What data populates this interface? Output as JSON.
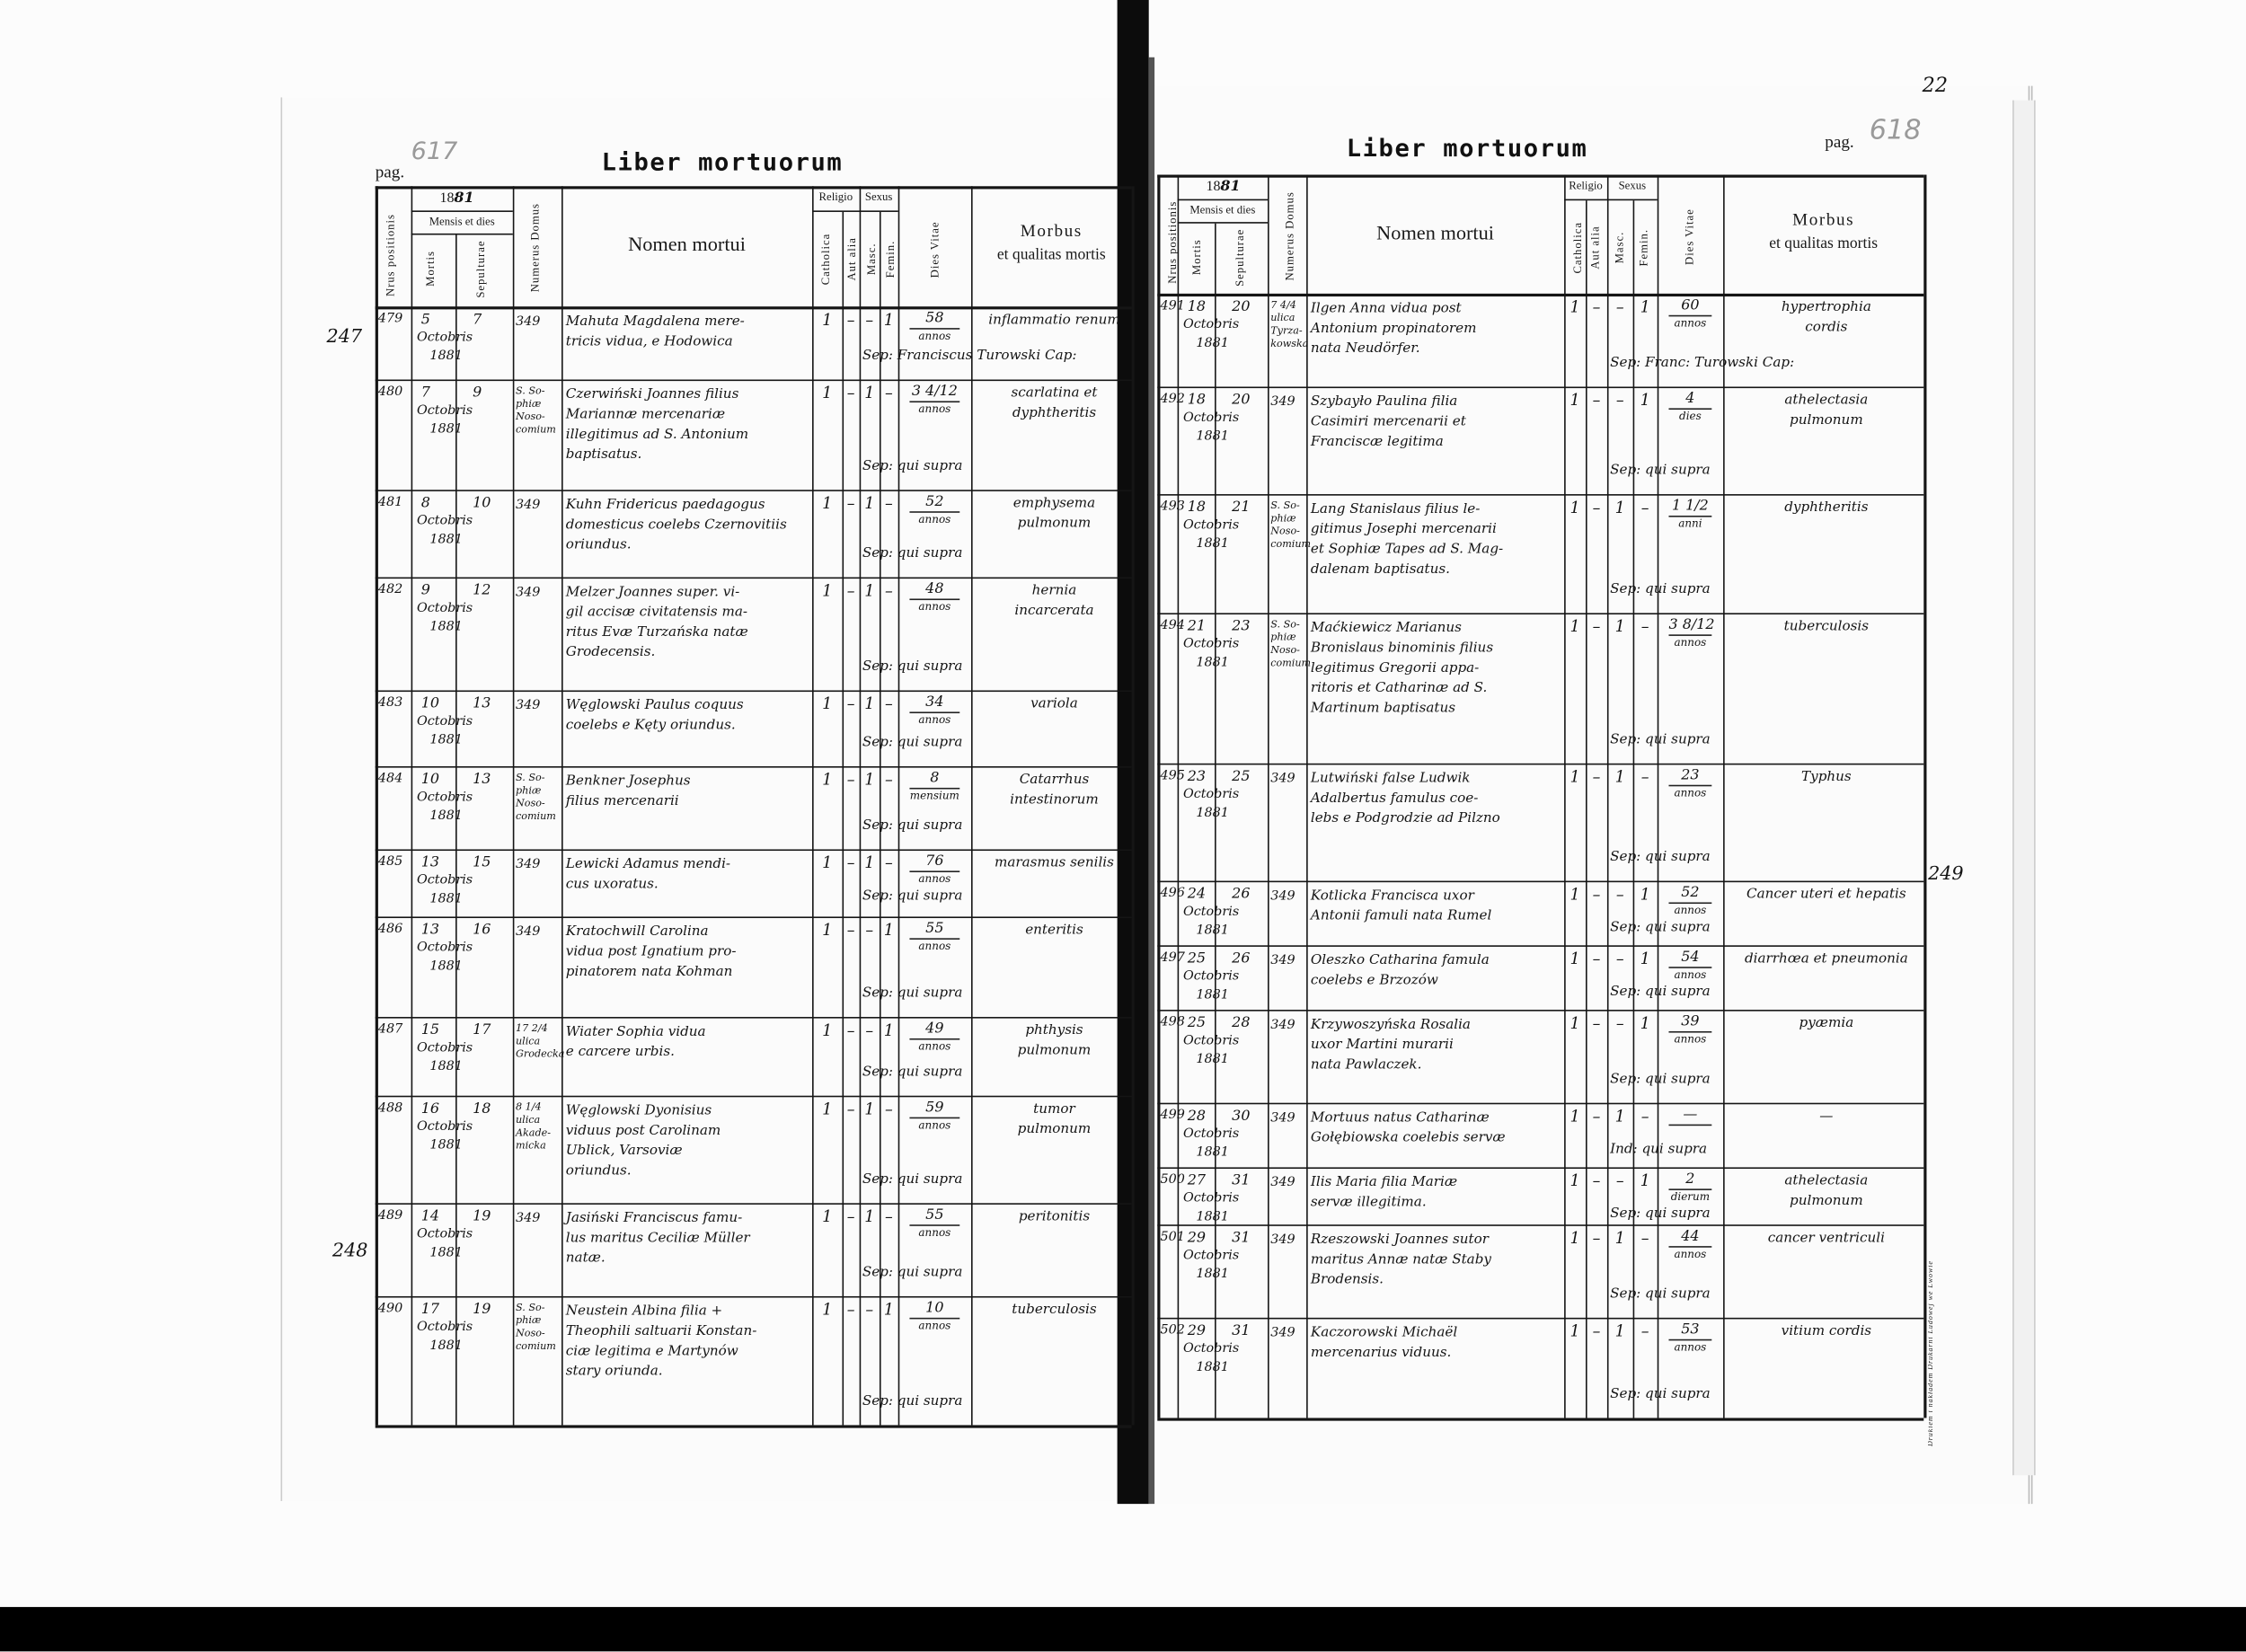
{
  "document": {
    "title": "Liber mortuorum",
    "colors": {
      "paper": "#fbfbfb",
      "ink": "#141414",
      "pencil": "#9a9a9a",
      "background_band": "#000000"
    },
    "printer_imprint": "Drukiem i nakładem Drukarni Ludowej we Lwowie",
    "corner_note": "22"
  },
  "header": {
    "nrus": "Nrus positionis",
    "year_printed": "18",
    "year_hand": "81",
    "mensis": "Mensis et dies",
    "mortis": "Mortis",
    "sepulturae": "Sepulturae",
    "numerus_domus": "Numerus Domus",
    "nomen": "Nomen mortui",
    "religio": "Religio",
    "catholica": "Catholica",
    "aut_alia": "Aut alia",
    "sexus": "Sexus",
    "masc": "Masc.",
    "femin": "Femin.",
    "dies_vitae": "Dies Vitae",
    "morbus": "Morbus",
    "qualitas": "et qualitas mortis"
  },
  "pages": [
    {
      "pag_label": "pag.",
      "pag_number": "617",
      "margin_notes": [
        "247",
        "248"
      ],
      "rows": [
        {
          "nr": "479",
          "mortis": "5",
          "sepulturae": "7",
          "month": "Octobris",
          "year": "1881",
          "domus": [
            "349"
          ],
          "name": [
            "Mahuta Magdalena mere-",
            "tricis vidua, e Hodowica"
          ],
          "catholica": "1",
          "aut_alia": "–",
          "masc": "–",
          "femin": "1",
          "dies": "58",
          "unit": "annos",
          "sepultor": "Sep: Franciscus Turowski Cap:",
          "morbus": [
            "inflammatio renum"
          ]
        },
        {
          "nr": "480",
          "mortis": "7",
          "sepulturae": "9",
          "month": "Octobris",
          "year": "1881",
          "domus": [
            "S. So-",
            "phiæ",
            "Noso-",
            "comium"
          ],
          "name": [
            "Czerwiński Joannes filius",
            "Mariannæ mercenariæ",
            "illegitimus ad S. Antonium",
            "baptisatus."
          ],
          "catholica": "1",
          "aut_alia": "–",
          "masc": "1",
          "femin": "–",
          "dies": "3 4/12",
          "unit": "annos",
          "sepultor": "Sep: qui supra",
          "morbus": [
            "scarlatina et",
            "dyphtheritis"
          ]
        },
        {
          "nr": "481",
          "mortis": "8",
          "sepulturae": "10",
          "month": "Octobris",
          "year": "1881",
          "domus": [
            "349"
          ],
          "name": [
            "Kuhn Fridericus paedagogus",
            "domesticus coelebs Czernovitiis",
            "oriundus."
          ],
          "catholica": "1",
          "aut_alia": "–",
          "masc": "1",
          "femin": "–",
          "dies": "52",
          "unit": "annos",
          "sepultor": "Sep: qui supra",
          "morbus": [
            "emphysema",
            "pulmonum"
          ]
        },
        {
          "nr": "482",
          "mortis": "9",
          "sepulturae": "12",
          "month": "Octobris",
          "year": "1881",
          "domus": [
            "349"
          ],
          "name": [
            "Melzer Joannes super. vi-",
            "gil accisæ civitatensis ma-",
            "ritus Evæ Turzańska natæ",
            "Grodecensis."
          ],
          "catholica": "1",
          "aut_alia": "–",
          "masc": "1",
          "femin": "–",
          "dies": "48",
          "unit": "annos",
          "sepultor": "Sep: qui supra",
          "morbus": [
            "hernia",
            "incarcerata"
          ]
        },
        {
          "nr": "483",
          "mortis": "10",
          "sepulturae": "13",
          "month": "Octobris",
          "year": "1881",
          "domus": [
            "349"
          ],
          "name": [
            "Węglowski Paulus coquus",
            "coelebs e Kęty oriundus."
          ],
          "catholica": "1",
          "aut_alia": "–",
          "masc": "1",
          "femin": "–",
          "dies": "34",
          "unit": "annos",
          "sepultor": "Sep: qui supra",
          "morbus": [
            "variola"
          ]
        },
        {
          "nr": "484",
          "mortis": "10",
          "sepulturae": "13",
          "month": "Octobris",
          "year": "1881",
          "domus": [
            "S. So-",
            "phiæ",
            "Noso-",
            "comium"
          ],
          "name": [
            "Benkner Josephus",
            "filius mercenarii"
          ],
          "catholica": "1",
          "aut_alia": "–",
          "masc": "1",
          "femin": "–",
          "dies": "8",
          "unit": "mensium",
          "sepultor": "Sep: qui supra",
          "morbus": [
            "Catarrhus",
            "intestinorum"
          ]
        },
        {
          "nr": "485",
          "mortis": "13",
          "sepulturae": "15",
          "month": "Octobris",
          "year": "1881",
          "domus": [
            "349"
          ],
          "name": [
            "Lewicki Adamus mendi-",
            "cus uxoratus."
          ],
          "catholica": "1",
          "aut_alia": "–",
          "masc": "1",
          "femin": "–",
          "dies": "76",
          "unit": "annos",
          "sepultor": "Sep: qui supra",
          "morbus": [
            "marasmus senilis"
          ]
        },
        {
          "nr": "486",
          "mortis": "13",
          "sepulturae": "16",
          "month": "Octobris",
          "year": "1881",
          "domus": [
            "349"
          ],
          "name": [
            "Kratochwill Carolina",
            "vidua post Ignatium pro-",
            "pinatorem nata Kohman"
          ],
          "catholica": "1",
          "aut_alia": "–",
          "masc": "–",
          "femin": "1",
          "dies": "55",
          "unit": "annos",
          "sepultor": "Sep: qui supra",
          "morbus": [
            "enteritis"
          ]
        },
        {
          "nr": "487",
          "mortis": "15",
          "sepulturae": "17",
          "month": "Octobris",
          "year": "1881",
          "domus": [
            "17 2/4",
            "ulica",
            "Grodecka"
          ],
          "name": [
            "Wiater Sophia vidua",
            "e carcere urbis."
          ],
          "catholica": "1",
          "aut_alia": "–",
          "masc": "–",
          "femin": "1",
          "dies": "49",
          "unit": "annos",
          "sepultor": "Sep: qui supra",
          "morbus": [
            "phthysis",
            "pulmonum"
          ]
        },
        {
          "nr": "488",
          "mortis": "16",
          "sepulturae": "18",
          "month": "Octobris",
          "year": "1881",
          "domus": [
            "8 1/4",
            "ulica",
            "Akade-",
            "micka"
          ],
          "name": [
            "Węglowski Dyonisius",
            "viduus post Carolinam",
            "Ublick, Varsoviæ",
            "oriundus."
          ],
          "catholica": "1",
          "aut_alia": "–",
          "masc": "1",
          "femin": "–",
          "dies": "59",
          "unit": "annos",
          "sepultor": "Sep: qui supra",
          "morbus": [
            "tumor",
            "pulmonum"
          ]
        },
        {
          "nr": "489",
          "mortis": "14",
          "sepulturae": "19",
          "month": "Octobris",
          "year": "1881",
          "domus": [
            "349"
          ],
          "name": [
            "Jasiński Franciscus famu-",
            "lus maritus Ceciliæ Müller",
            "natæ."
          ],
          "catholica": "1",
          "aut_alia": "–",
          "masc": "1",
          "femin": "–",
          "dies": "55",
          "unit": "annos",
          "sepultor": "Sep: qui supra",
          "morbus": [
            "peritonitis"
          ]
        },
        {
          "nr": "490",
          "mortis": "17",
          "sepulturae": "19",
          "month": "Octobris",
          "year": "1881",
          "domus": [
            "S. So-",
            "phiæ",
            "Noso-",
            "comium"
          ],
          "name": [
            "Neustein Albina filia +",
            "Theophili saltuarii Konstan-",
            "ciæ legitima e Martynów",
            "stary oriunda."
          ],
          "catholica": "1",
          "aut_alia": "–",
          "masc": "–",
          "femin": "1",
          "dies": "10",
          "unit": "annos",
          "sepultor": "Sep: qui supra",
          "morbus": [
            "tuberculosis"
          ]
        }
      ]
    },
    {
      "pag_label": "pag.",
      "pag_number": "618",
      "margin_notes": [
        "249"
      ],
      "rows": [
        {
          "nr": "491",
          "mortis": "18",
          "sepulturae": "20",
          "month": "Octobris",
          "year": "1881",
          "domus": [
            "7 4/4",
            "ulica",
            "Tyrza-",
            "kowska"
          ],
          "name": [
            "Ilgen Anna vidua post",
            "Antonium propinatorem",
            "nata Neudörfer."
          ],
          "catholica": "1",
          "aut_alia": "–",
          "masc": "–",
          "femin": "1",
          "dies": "60",
          "unit": "annos",
          "sepultor": "Sep: Franc: Turowski Cap:",
          "morbus": [
            "hypertrophia",
            "cordis"
          ]
        },
        {
          "nr": "492",
          "mortis": "18",
          "sepulturae": "20",
          "month": "Octobris",
          "year": "1881",
          "domus": [
            "349"
          ],
          "name": [
            "Szybayło Paulina filia",
            "Casimiri mercenarii et",
            "Franciscæ legitima"
          ],
          "catholica": "1",
          "aut_alia": "–",
          "masc": "–",
          "femin": "1",
          "dies": "4",
          "unit": "dies",
          "sepultor": "Sep: qui supra",
          "morbus": [
            "athelectasia",
            "pulmonum"
          ]
        },
        {
          "nr": "493",
          "mortis": "18",
          "sepulturae": "21",
          "month": "Octobris",
          "year": "1881",
          "domus": [
            "S. So-",
            "phiæ",
            "Noso-",
            "comium"
          ],
          "name": [
            "Lang Stanislaus filius le-",
            "gitimus Josephi mercenarii",
            "et Sophiæ Tapes ad S. Mag-",
            "dalenam baptisatus."
          ],
          "catholica": "1",
          "aut_alia": "–",
          "masc": "1",
          "femin": "–",
          "dies": "1 1/2",
          "unit": "anni",
          "sepultor": "Sep: qui supra",
          "morbus": [
            "dyphtheritis"
          ]
        },
        {
          "nr": "494",
          "mortis": "21",
          "sepulturae": "23",
          "month": "Octobris",
          "year": "1881",
          "domus": [
            "S. So-",
            "phiæ",
            "Noso-",
            "comium"
          ],
          "name": [
            "Maćkiewicz Marianus",
            "Bronislaus binominis filius",
            "legitimus Gregorii appa-",
            "ritoris et Catharinæ ad S.",
            "Martinum baptisatus"
          ],
          "catholica": "1",
          "aut_alia": "–",
          "masc": "1",
          "femin": "–",
          "dies": "3 8/12",
          "unit": "annos",
          "sepultor": "Sep: qui supra",
          "morbus": [
            "tuberculosis"
          ]
        },
        {
          "nr": "495",
          "mortis": "23",
          "sepulturae": "25",
          "month": "Octobris",
          "year": "1881",
          "domus": [
            "349"
          ],
          "name": [
            "Lutwiński false Ludwik",
            "Adalbertus famulus coe-",
            "lebs e Podgrodzie ad Pilzno"
          ],
          "catholica": "1",
          "aut_alia": "–",
          "masc": "1",
          "femin": "–",
          "dies": "23",
          "unit": "annos",
          "sepultor": "Sep: qui supra",
          "morbus": [
            "Typhus"
          ]
        },
        {
          "nr": "496",
          "mortis": "24",
          "sepulturae": "26",
          "month": "Octobris",
          "year": "1881",
          "domus": [
            "349"
          ],
          "name": [
            "Kotlicka Francisca uxor",
            "Antonii famuli nata Rumel"
          ],
          "catholica": "1",
          "aut_alia": "–",
          "masc": "–",
          "femin": "1",
          "dies": "52",
          "unit": "annos",
          "sepultor": "Sep: qui supra",
          "morbus": [
            "Cancer uteri et hepatis"
          ]
        },
        {
          "nr": "497",
          "mortis": "25",
          "sepulturae": "26",
          "month": "Octobris",
          "year": "1881",
          "domus": [
            "349"
          ],
          "name": [
            "Oleszko Catharina famula",
            "coelebs e Brzozów"
          ],
          "catholica": "1",
          "aut_alia": "–",
          "masc": "–",
          "femin": "1",
          "dies": "54",
          "unit": "annos",
          "sepultor": "Sep: qui supra",
          "morbus": [
            "diarrhœa et pneumonia"
          ]
        },
        {
          "nr": "498",
          "mortis": "25",
          "sepulturae": "28",
          "month": "Octobris",
          "year": "1881",
          "domus": [
            "349"
          ],
          "name": [
            "Krzywoszyńska Rosalia",
            "uxor Martini murarii",
            "nata Pawlaczek."
          ],
          "catholica": "1",
          "aut_alia": "–",
          "masc": "–",
          "femin": "1",
          "dies": "39",
          "unit": "annos",
          "sepultor": "Sep: qui supra",
          "morbus": [
            "pyæmia"
          ]
        },
        {
          "nr": "499",
          "mortis": "28",
          "sepulturae": "30",
          "month": "Octobris",
          "year": "1881",
          "domus": [
            "349"
          ],
          "name": [
            "Mortuus natus Catharinæ",
            "Gołębiowska coelebis servæ"
          ],
          "catholica": "1",
          "aut_alia": "–",
          "masc": "1",
          "femin": "–",
          "dies": "—",
          "unit": "",
          "sepultor": "Ind: qui supra",
          "morbus": [
            "—"
          ]
        },
        {
          "nr": "500",
          "mortis": "27",
          "sepulturae": "31",
          "month": "Octobris",
          "year": "1881",
          "domus": [
            "349"
          ],
          "name": [
            "Ilis Maria filia Mariæ",
            "servæ illegitima."
          ],
          "catholica": "1",
          "aut_alia": "–",
          "masc": "–",
          "femin": "1",
          "dies": "2",
          "unit": "dierum",
          "sepultor": "Sep: qui supra",
          "morbus": [
            "athelectasia",
            "pulmonum"
          ]
        },
        {
          "nr": "501",
          "mortis": "29",
          "sepulturae": "31",
          "month": "Octobris",
          "year": "1881",
          "domus": [
            "349"
          ],
          "name": [
            "Rzeszowski Joannes sutor",
            "maritus Annæ natæ Staby",
            "Brodensis."
          ],
          "catholica": "1",
          "aut_alia": "–",
          "masc": "1",
          "femin": "–",
          "dies": "44",
          "unit": "annos",
          "sepultor": "Sep: qui supra",
          "morbus": [
            "cancer ventriculi"
          ]
        },
        {
          "nr": "502",
          "mortis": "29",
          "sepulturae": "31",
          "month": "Octobris",
          "year": "1881",
          "domus": [
            "349"
          ],
          "name": [
            "Kaczorowski Michaël",
            "mercenarius viduus."
          ],
          "catholica": "1",
          "aut_alia": "–",
          "masc": "1",
          "femin": "–",
          "dies": "53",
          "unit": "annos",
          "sepultor": "Sep: qui supra",
          "morbus": [
            "vitium cordis"
          ]
        }
      ]
    }
  ]
}
